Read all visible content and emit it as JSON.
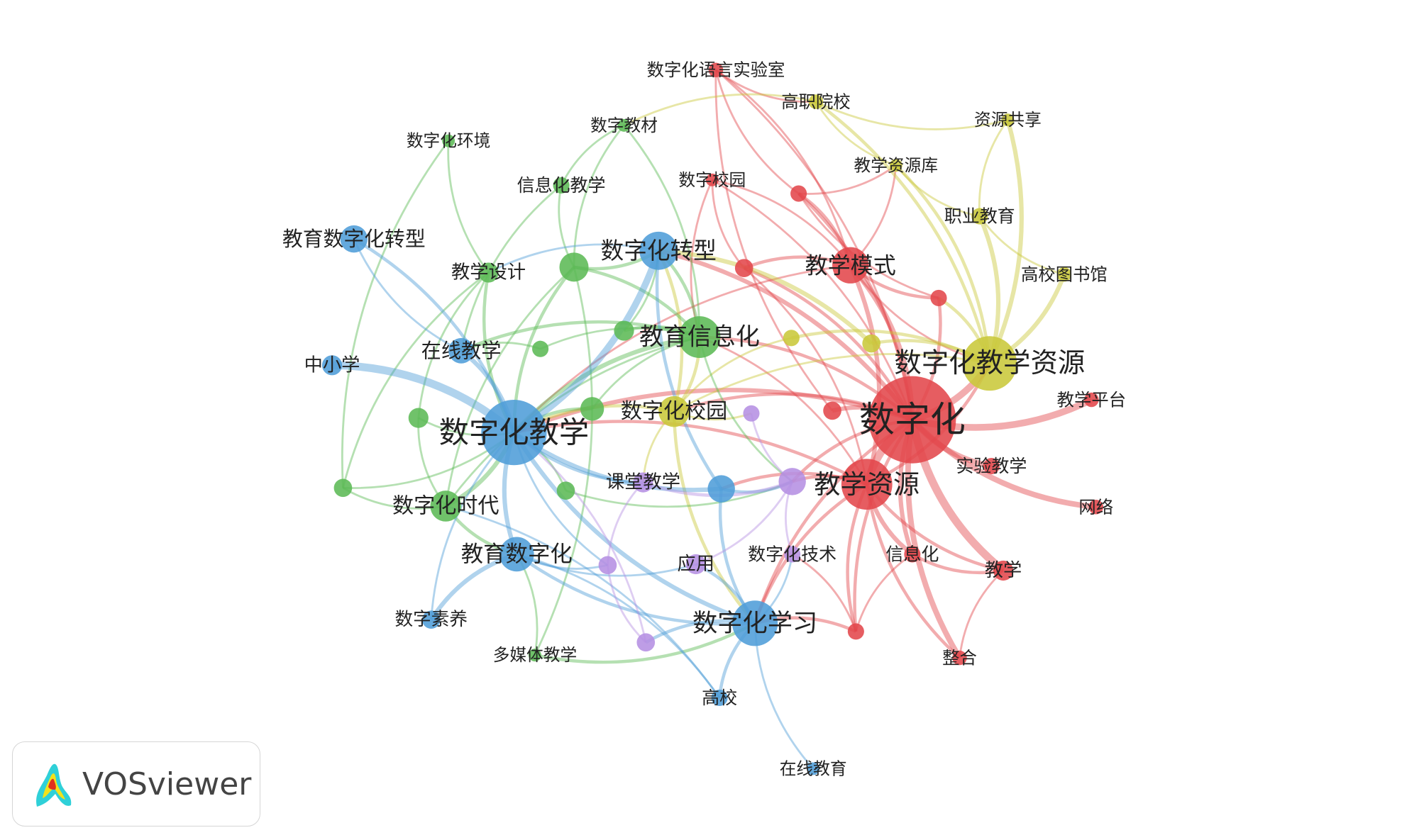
{
  "chart_data": {
    "type": "network",
    "title": "",
    "clusters": {
      "red": "#e2474b",
      "yellow": "#c9c83a",
      "green": "#5cba55",
      "blue": "#4f9dd8",
      "purple": "#b590e3"
    },
    "nodes": [
      {
        "id": "n1",
        "label": "数字化",
        "cluster": "red",
        "weight": 48
      },
      {
        "id": "n2",
        "label": "教学资源",
        "cluster": "red",
        "weight": 28
      },
      {
        "id": "n3",
        "label": "教学模式",
        "cluster": "red",
        "weight": 20
      },
      {
        "id": "n4",
        "label": "数字化语言实验室",
        "cluster": "red",
        "weight": 8
      },
      {
        "id": "n5",
        "label": "数字校园",
        "cluster": "red",
        "weight": 7
      },
      {
        "id": "n6",
        "label": "",
        "cluster": "red",
        "weight": 9
      },
      {
        "id": "n7",
        "label": "",
        "cluster": "red",
        "weight": 10
      },
      {
        "id": "n8",
        "label": "",
        "cluster": "red",
        "weight": 9
      },
      {
        "id": "n9",
        "label": "",
        "cluster": "red",
        "weight": 10
      },
      {
        "id": "n10",
        "label": "教学平台",
        "cluster": "red",
        "weight": 8
      },
      {
        "id": "n11",
        "label": "实验教学",
        "cluster": "red",
        "weight": 9
      },
      {
        "id": "n12",
        "label": "网络",
        "cluster": "red",
        "weight": 8
      },
      {
        "id": "n13",
        "label": "信息化",
        "cluster": "red",
        "weight": 9
      },
      {
        "id": "n14",
        "label": "教学",
        "cluster": "red",
        "weight": 11
      },
      {
        "id": "n15",
        "label": "",
        "cluster": "red",
        "weight": 9
      },
      {
        "id": "n16",
        "label": "整合",
        "cluster": "red",
        "weight": 8
      },
      {
        "id": "y1",
        "label": "数字化教学资源",
        "cluster": "yellow",
        "weight": 30
      },
      {
        "id": "y2",
        "label": "高职院校",
        "cluster": "yellow",
        "weight": 8
      },
      {
        "id": "y3",
        "label": "资源共享",
        "cluster": "yellow",
        "weight": 7
      },
      {
        "id": "y4",
        "label": "教学资源库",
        "cluster": "yellow",
        "weight": 7
      },
      {
        "id": "y5",
        "label": "职业教育",
        "cluster": "yellow",
        "weight": 9
      },
      {
        "id": "y6",
        "label": "高校图书馆",
        "cluster": "yellow",
        "weight": 8
      },
      {
        "id": "y7",
        "label": "",
        "cluster": "yellow",
        "weight": 9
      },
      {
        "id": "y8",
        "label": "",
        "cluster": "yellow",
        "weight": 10
      },
      {
        "id": "y9",
        "label": "数字化校园",
        "cluster": "yellow",
        "weight": 17
      },
      {
        "id": "g1",
        "label": "教育信息化",
        "cluster": "green",
        "weight": 23
      },
      {
        "id": "g2",
        "label": "数字教材",
        "cluster": "green",
        "weight": 7
      },
      {
        "id": "g3",
        "label": "数字化环境",
        "cluster": "green",
        "weight": 7
      },
      {
        "id": "g4",
        "label": "信息化教学",
        "cluster": "green",
        "weight": 9
      },
      {
        "id": "g5",
        "label": "教学设计",
        "cluster": "green",
        "weight": 11
      },
      {
        "id": "g6",
        "label": "",
        "cluster": "green",
        "weight": 16
      },
      {
        "id": "g7",
        "label": "",
        "cluster": "green",
        "weight": 11
      },
      {
        "id": "g8",
        "label": "",
        "cluster": "green",
        "weight": 9
      },
      {
        "id": "g9",
        "label": "",
        "cluster": "green",
        "weight": 13
      },
      {
        "id": "g10",
        "label": "",
        "cluster": "green",
        "weight": 11
      },
      {
        "id": "g11",
        "label": "",
        "cluster": "green",
        "weight": 10
      },
      {
        "id": "g12",
        "label": "数字化时代",
        "cluster": "green",
        "weight": 17
      },
      {
        "id": "g13",
        "label": "",
        "cluster": "green",
        "weight": 10
      },
      {
        "id": "g14",
        "label": "多媒体教学",
        "cluster": "green",
        "weight": 7
      },
      {
        "id": "b1",
        "label": "数字化教学",
        "cluster": "blue",
        "weight": 36
      },
      {
        "id": "b2",
        "label": "数字化转型",
        "cluster": "blue",
        "weight": 21
      },
      {
        "id": "b3",
        "label": "教育数字化转型",
        "cluster": "blue",
        "weight": 15
      },
      {
        "id": "b4",
        "label": "在线教学",
        "cluster": "blue",
        "weight": 14
      },
      {
        "id": "b5",
        "label": "中小学",
        "cluster": "blue",
        "weight": 11
      },
      {
        "id": "b6",
        "label": "",
        "cluster": "blue",
        "weight": 15
      },
      {
        "id": "b7",
        "label": "教育数字化",
        "cluster": "blue",
        "weight": 19
      },
      {
        "id": "b8",
        "label": "数字素养",
        "cluster": "blue",
        "weight": 10
      },
      {
        "id": "b9",
        "label": "数字化学习",
        "cluster": "blue",
        "weight": 25
      },
      {
        "id": "b10",
        "label": "高校",
        "cluster": "blue",
        "weight": 9
      },
      {
        "id": "b11",
        "label": "在线教育",
        "cluster": "blue",
        "weight": 7
      },
      {
        "id": "p1",
        "label": "",
        "cluster": "purple",
        "weight": 9
      },
      {
        "id": "p2",
        "label": "课堂教学",
        "cluster": "purple",
        "weight": 11
      },
      {
        "id": "p3",
        "label": "",
        "cluster": "purple",
        "weight": 15
      },
      {
        "id": "p4",
        "label": "",
        "cluster": "purple",
        "weight": 10
      },
      {
        "id": "p5",
        "label": "应用",
        "cluster": "purple",
        "weight": 11
      },
      {
        "id": "p6",
        "label": "数字化技术",
        "cluster": "purple",
        "weight": 9
      },
      {
        "id": "p7",
        "label": "",
        "cluster": "purple",
        "weight": 10
      }
    ],
    "links": [
      [
        "n1",
        "n2",
        6
      ],
      [
        "n1",
        "n3",
        4
      ],
      [
        "n1",
        "y1",
        5
      ],
      [
        "n1",
        "n10",
        5
      ],
      [
        "n1",
        "n11",
        4
      ],
      [
        "n1",
        "n12",
        4
      ],
      [
        "n1",
        "n13",
        3
      ],
      [
        "n1",
        "n14",
        6
      ],
      [
        "n1",
        "n16",
        4
      ],
      [
        "n1",
        "n9",
        3
      ],
      [
        "n1",
        "n8",
        2
      ],
      [
        "n1",
        "n7",
        2
      ],
      [
        "n1",
        "n6",
        2
      ],
      [
        "n1",
        "n15",
        2
      ],
      [
        "n1",
        "b1",
        3
      ],
      [
        "n1",
        "g1",
        2
      ],
      [
        "n1",
        "b2",
        3
      ],
      [
        "n1",
        "p3",
        2
      ],
      [
        "n1",
        "y9",
        2
      ],
      [
        "n1",
        "n4",
        1
      ],
      [
        "n1",
        "n5",
        1
      ],
      [
        "n1",
        "b9",
        2
      ],
      [
        "n2",
        "n3",
        3
      ],
      [
        "n2",
        "n13",
        3
      ],
      [
        "n2",
        "n15",
        2
      ],
      [
        "n2",
        "n16",
        2
      ],
      [
        "n2",
        "n14",
        2
      ],
      [
        "n2",
        "y1",
        2
      ],
      [
        "n2",
        "b9",
        2
      ],
      [
        "n2",
        "p3",
        2
      ],
      [
        "n2",
        "n7",
        1
      ],
      [
        "n2",
        "b1",
        2
      ],
      [
        "n2",
        "g1",
        1
      ],
      [
        "n2",
        "b6",
        2
      ],
      [
        "n3",
        "n6",
        2
      ],
      [
        "n3",
        "n7",
        2
      ],
      [
        "n3",
        "n8",
        2
      ],
      [
        "n3",
        "y4",
        1
      ],
      [
        "n3",
        "n4",
        1
      ],
      [
        "n3",
        "n5",
        1
      ],
      [
        "n3",
        "y1",
        1
      ],
      [
        "n3",
        "b1",
        1
      ],
      [
        "n4",
        "y2",
        1
      ],
      [
        "n4",
        "n6",
        1
      ],
      [
        "n4",
        "n9",
        1
      ],
      [
        "n5",
        "g1",
        1
      ],
      [
        "n5",
        "n7",
        1
      ],
      [
        "n6",
        "y4",
        1
      ],
      [
        "n6",
        "n8",
        1
      ],
      [
        "n13",
        "n14",
        2
      ],
      [
        "n13",
        "n15",
        1
      ],
      [
        "n15",
        "b9",
        2
      ],
      [
        "n15",
        "p6",
        1
      ],
      [
        "n14",
        "n16",
        1
      ],
      [
        "y1",
        "y3",
        3
      ],
      [
        "y1",
        "y5",
        3
      ],
      [
        "y1",
        "y6",
        3
      ],
      [
        "y1",
        "y4",
        2
      ],
      [
        "y1",
        "y2",
        2
      ],
      [
        "y1",
        "y8",
        2
      ],
      [
        "y1",
        "y7",
        2
      ],
      [
        "y1",
        "n8",
        2
      ],
      [
        "y1",
        "y9",
        1
      ],
      [
        "y2",
        "y3",
        1
      ],
      [
        "y2",
        "y4",
        1
      ],
      [
        "y2",
        "g2",
        1
      ],
      [
        "y3",
        "y5",
        1
      ],
      [
        "y4",
        "y5",
        1
      ],
      [
        "y5",
        "y6",
        1
      ],
      [
        "y7",
        "y9",
        1
      ],
      [
        "y8",
        "b2",
        3
      ],
      [
        "y9",
        "g1",
        2
      ],
      [
        "y9",
        "b1",
        2
      ],
      [
        "y9",
        "b9",
        2
      ],
      [
        "y9",
        "p1",
        1
      ],
      [
        "y9",
        "p2",
        1
      ],
      [
        "y9",
        "b2",
        2
      ],
      [
        "g1",
        "g6",
        2
      ],
      [
        "g1",
        "g7",
        2
      ],
      [
        "g1",
        "b1",
        3
      ],
      [
        "g1",
        "b2",
        2
      ],
      [
        "g1",
        "g8",
        1
      ],
      [
        "g1",
        "g9",
        1
      ],
      [
        "g1",
        "b4",
        2
      ],
      [
        "g1",
        "g2",
        1
      ],
      [
        "g1",
        "g12",
        1
      ],
      [
        "g1",
        "p3",
        1
      ],
      [
        "g2",
        "g6",
        1
      ],
      [
        "g2",
        "g4",
        1
      ],
      [
        "g3",
        "g5",
        1
      ],
      [
        "g3",
        "g11",
        1
      ],
      [
        "g4",
        "g6",
        1
      ],
      [
        "g4",
        "b4",
        1
      ],
      [
        "g5",
        "g10",
        1
      ],
      [
        "g5",
        "b1",
        2
      ],
      [
        "g5",
        "g11",
        1
      ],
      [
        "g6",
        "b2",
        2
      ],
      [
        "g6",
        "b1",
        2
      ],
      [
        "g6",
        "g12",
        1
      ],
      [
        "g7",
        "b2",
        1
      ],
      [
        "g8",
        "b4",
        1
      ],
      [
        "g9",
        "b1",
        2
      ],
      [
        "g10",
        "g12",
        1
      ],
      [
        "g10",
        "b1",
        1
      ],
      [
        "g11",
        "g12",
        1
      ],
      [
        "g11",
        "b1",
        1
      ],
      [
        "g12",
        "b1",
        3
      ],
      [
        "g12",
        "b7",
        2
      ],
      [
        "g13",
        "b1",
        1
      ],
      [
        "g13",
        "p3",
        1
      ],
      [
        "g14",
        "b7",
        1
      ],
      [
        "g14",
        "b9",
        2
      ],
      [
        "g14",
        "g6",
        1
      ],
      [
        "b1",
        "b5",
        6
      ],
      [
        "b1",
        "b2",
        5
      ],
      [
        "b1",
        "b4",
        3
      ],
      [
        "b1",
        "b7",
        3
      ],
      [
        "b1",
        "b9",
        3
      ],
      [
        "b1",
        "b6",
        3
      ],
      [
        "b1",
        "b3",
        2
      ],
      [
        "b1",
        "p2",
        2
      ],
      [
        "b1",
        "p4",
        1
      ],
      [
        "b1",
        "b8",
        1
      ],
      [
        "b2",
        "b6",
        2
      ],
      [
        "b2",
        "g5",
        1
      ],
      [
        "b3",
        "b4",
        1
      ],
      [
        "b6",
        "p3",
        2
      ],
      [
        "b6",
        "b9",
        2
      ],
      [
        "b7",
        "b8",
        3
      ],
      [
        "b7",
        "b9",
        2
      ],
      [
        "b7",
        "p4",
        1
      ],
      [
        "b7",
        "p5",
        1
      ],
      [
        "b9",
        "b10",
        2
      ],
      [
        "b9",
        "b11",
        1
      ],
      [
        "b9",
        "p7",
        2
      ],
      [
        "b9",
        "p5",
        2
      ],
      [
        "b9",
        "p6",
        1
      ],
      [
        "b10",
        "b7",
        1
      ],
      [
        "b10",
        "g12",
        1
      ],
      [
        "p1",
        "p3",
        1
      ],
      [
        "p2",
        "p3",
        2
      ],
      [
        "p2",
        "p4",
        1
      ],
      [
        "p3",
        "p6",
        1
      ],
      [
        "p4",
        "p7",
        1
      ],
      [
        "p5",
        "p3",
        1
      ],
      [
        "p7",
        "b1",
        1
      ]
    ]
  },
  "logo": {
    "text": "VOSviewer"
  }
}
